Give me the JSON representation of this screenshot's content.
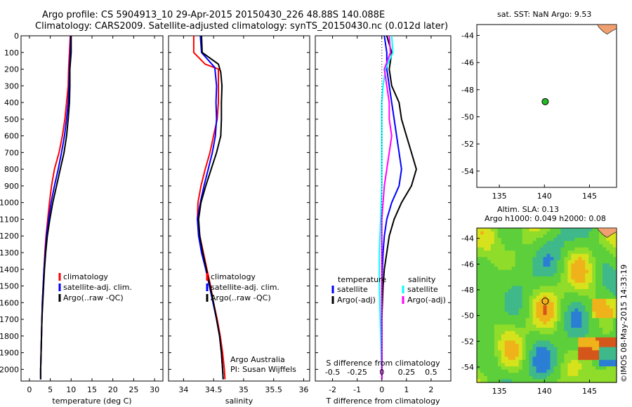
{
  "header": {
    "title_line1": "Argo profile: CS 5904913_10 29-Apr-2015 20150430_226 48.88S 140.088E",
    "title_line2": "Climatology: CARS2009. Satellite-adjusted climatology: synTS_20150430.nc (0.012d later)"
  },
  "map1": {
    "title": "sat. SST: NaN Argo: 9.53"
  },
  "map2": {
    "title_line1": "Altim. SLA: 0.13",
    "title_line2": "Argo h1000: 0.049 h2000: 0.08"
  },
  "footer_stamp": "©IMOS 08-May-2015 14:33:19",
  "annotations": {
    "agency": "Argo Australia",
    "pi": "PI: Susan Wijffels"
  },
  "colors": {
    "climatology": "#ff0000",
    "satellite": "#0000ff",
    "argo": "#000000",
    "sat_salinity": "#00ffff",
    "argo_salinity": "#ff00ff",
    "float_marker": "#22bb22"
  },
  "chart_data": [
    {
      "type": "line",
      "id": "temperature",
      "xlabel": "temperature (deg C)",
      "ylabel": "",
      "xlim": [
        -2,
        32
      ],
      "ylim": [
        2070,
        0
      ],
      "xticks": [
        0,
        5,
        10,
        15,
        20,
        25,
        30
      ],
      "yticks": [
        0,
        100,
        200,
        300,
        400,
        500,
        600,
        700,
        800,
        900,
        1000,
        1100,
        1200,
        1300,
        1400,
        1500,
        1600,
        1700,
        1800,
        1900,
        2000
      ],
      "legend": [
        "climatology",
        "satellite-adj. clim.",
        "Argo(..raw -QC)"
      ],
      "series": [
        {
          "name": "climatology",
          "color": "#ff0000",
          "points": [
            [
              9.8,
              0
            ],
            [
              9.6,
              100
            ],
            [
              9.4,
              200
            ],
            [
              9.3,
              300
            ],
            [
              8.9,
              400
            ],
            [
              8.5,
              500
            ],
            [
              7.9,
              600
            ],
            [
              7.1,
              700
            ],
            [
              6.0,
              800
            ],
            [
              5.3,
              900
            ],
            [
              4.8,
              1000
            ],
            [
              4.4,
              1100
            ],
            [
              4.0,
              1200
            ],
            [
              3.7,
              1300
            ],
            [
              3.5,
              1400
            ],
            [
              3.3,
              1500
            ],
            [
              3.1,
              1600
            ],
            [
              3.0,
              1700
            ],
            [
              2.9,
              1800
            ],
            [
              2.8,
              1900
            ],
            [
              2.7,
              2000
            ],
            [
              2.7,
              2060
            ]
          ]
        },
        {
          "name": "satellite-adj. clim.",
          "color": "#0000ff",
          "points": [
            [
              9.9,
              0
            ],
            [
              9.8,
              100
            ],
            [
              9.6,
              200
            ],
            [
              9.5,
              300
            ],
            [
              9.3,
              400
            ],
            [
              8.9,
              500
            ],
            [
              8.4,
              600
            ],
            [
              7.7,
              700
            ],
            [
              6.9,
              800
            ],
            [
              6.0,
              900
            ],
            [
              5.2,
              1000
            ],
            [
              4.6,
              1100
            ],
            [
              4.1,
              1200
            ],
            [
              3.8,
              1300
            ],
            [
              3.5,
              1400
            ],
            [
              3.3,
              1500
            ],
            [
              3.1,
              1600
            ],
            [
              3.0,
              1700
            ],
            [
              2.9,
              1800
            ],
            [
              2.8,
              1900
            ],
            [
              2.7,
              2000
            ],
            [
              2.7,
              2060
            ]
          ]
        },
        {
          "name": "Argo(..raw -QC)",
          "color": "#000000",
          "points": [
            [
              10.0,
              0
            ],
            [
              10.0,
              100
            ],
            [
              9.7,
              200
            ],
            [
              9.7,
              300
            ],
            [
              9.6,
              400
            ],
            [
              9.3,
              500
            ],
            [
              8.9,
              600
            ],
            [
              8.3,
              700
            ],
            [
              7.4,
              800
            ],
            [
              6.5,
              900
            ],
            [
              5.6,
              1000
            ],
            [
              4.9,
              1100
            ],
            [
              4.3,
              1200
            ],
            [
              3.9,
              1300
            ],
            [
              3.6,
              1400
            ],
            [
              3.4,
              1500
            ],
            [
              3.2,
              1600
            ],
            [
              3.0,
              1700
            ],
            [
              2.9,
              1800
            ],
            [
              2.8,
              1900
            ],
            [
              2.7,
              2000
            ],
            [
              2.7,
              2060
            ]
          ]
        }
      ]
    },
    {
      "type": "line",
      "id": "salinity",
      "xlabel": "salinity",
      "xlim": [
        33.75,
        36.1
      ],
      "ylim": [
        2070,
        0
      ],
      "xticks": [
        34,
        34.5,
        35,
        35.5,
        36
      ],
      "legend": [
        "climatology",
        "satellite-adj. clim.",
        "Argo(..raw -QC)"
      ],
      "series": [
        {
          "name": "climatology",
          "color": "#ff0000",
          "points": [
            [
              34.17,
              0
            ],
            [
              34.17,
              100
            ],
            [
              34.36,
              170
            ],
            [
              34.58,
              200
            ],
            [
              34.58,
              300
            ],
            [
              34.58,
              400
            ],
            [
              34.56,
              500
            ],
            [
              34.5,
              600
            ],
            [
              34.44,
              700
            ],
            [
              34.36,
              800
            ],
            [
              34.29,
              900
            ],
            [
              34.24,
              1000
            ],
            [
              34.23,
              1100
            ],
            [
              34.27,
              1200
            ],
            [
              34.33,
              1300
            ],
            [
              34.39,
              1400
            ],
            [
              34.45,
              1500
            ],
            [
              34.5,
              1600
            ],
            [
              34.56,
              1700
            ],
            [
              34.61,
              1800
            ],
            [
              34.65,
              1900
            ],
            [
              34.68,
              2000
            ],
            [
              34.69,
              2060
            ]
          ]
        },
        {
          "name": "satellite-adj. clim.",
          "color": "#0000ff",
          "points": [
            [
              34.28,
              0
            ],
            [
              34.3,
              100
            ],
            [
              34.52,
              190
            ],
            [
              34.55,
              300
            ],
            [
              34.54,
              400
            ],
            [
              34.55,
              500
            ],
            [
              34.53,
              600
            ],
            [
              34.48,
              700
            ],
            [
              34.41,
              800
            ],
            [
              34.34,
              900
            ],
            [
              34.28,
              1000
            ],
            [
              34.23,
              1100
            ],
            [
              34.25,
              1200
            ],
            [
              34.3,
              1300
            ],
            [
              34.37,
              1400
            ],
            [
              34.43,
              1500
            ],
            [
              34.49,
              1600
            ],
            [
              34.55,
              1700
            ],
            [
              34.6,
              1800
            ],
            [
              34.63,
              1900
            ],
            [
              34.65,
              2000
            ],
            [
              34.66,
              2060
            ]
          ]
        },
        {
          "name": "Argo(..raw -QC)",
          "color": "#000000",
          "points": [
            [
              34.3,
              0
            ],
            [
              34.31,
              100
            ],
            [
              34.58,
              170
            ],
            [
              34.62,
              220
            ],
            [
              34.64,
              300
            ],
            [
              34.63,
              400
            ],
            [
              34.63,
              500
            ],
            [
              34.62,
              600
            ],
            [
              34.55,
              700
            ],
            [
              34.46,
              800
            ],
            [
              34.37,
              900
            ],
            [
              34.29,
              1000
            ],
            [
              34.25,
              1100
            ],
            [
              34.27,
              1200
            ],
            [
              34.32,
              1300
            ],
            [
              34.38,
              1400
            ],
            [
              34.44,
              1500
            ],
            [
              34.5,
              1600
            ],
            [
              34.55,
              1700
            ],
            [
              34.6,
              1800
            ],
            [
              34.63,
              1900
            ],
            [
              34.65,
              2000
            ],
            [
              34.66,
              2060
            ]
          ]
        }
      ]
    },
    {
      "type": "line",
      "id": "difference",
      "xlabel": "T difference from climatology",
      "xlabel_top": "S difference from climatology",
      "xlim": [
        -2.7,
        2.8
      ],
      "ylim": [
        2070,
        0
      ],
      "xticks": [
        -2,
        -1,
        0,
        1,
        2
      ],
      "xticks_top": [
        -0.5,
        -0.25,
        0,
        0.25,
        0.5
      ],
      "legend_headers": [
        "temperature",
        "salinity"
      ],
      "legend": [
        "satellite",
        "Argo(-adj)",
        "satellite",
        "Argo(-adj)"
      ],
      "series": [
        {
          "name": "satellite",
          "group": "temperature",
          "color": "#0000ff",
          "points": [
            [
              0.1,
              0
            ],
            [
              0.2,
              100
            ],
            [
              0.2,
              200
            ],
            [
              0.3,
              300
            ],
            [
              0.4,
              400
            ],
            [
              0.5,
              500
            ],
            [
              0.6,
              600
            ],
            [
              0.7,
              700
            ],
            [
              0.8,
              800
            ],
            [
              0.7,
              900
            ],
            [
              0.4,
              1000
            ],
            [
              0.2,
              1100
            ],
            [
              0.1,
              1200
            ],
            [
              0.05,
              1300
            ],
            [
              0,
              1500
            ],
            [
              0,
              2060
            ]
          ]
        },
        {
          "name": "Argo(-adj)",
          "group": "temperature",
          "color": "#000000",
          "points": [
            [
              0.2,
              0
            ],
            [
              0.4,
              100
            ],
            [
              0.3,
              200
            ],
            [
              0.4,
              300
            ],
            [
              0.7,
              400
            ],
            [
              0.8,
              500
            ],
            [
              1.0,
              600
            ],
            [
              1.2,
              700
            ],
            [
              1.4,
              800
            ],
            [
              1.2,
              900
            ],
            [
              0.8,
              1000
            ],
            [
              0.5,
              1100
            ],
            [
              0.3,
              1200
            ],
            [
              0.2,
              1300
            ],
            [
              0.1,
              1400
            ],
            [
              0.05,
              1500
            ],
            [
              0,
              1700
            ],
            [
              0,
              2060
            ]
          ]
        },
        {
          "name": "satellite",
          "group": "salinity",
          "color": "#00ffff",
          "points": [
            [
              0.4,
              0
            ],
            [
              0.45,
              100
            ],
            [
              0.15,
              200
            ],
            [
              0.05,
              300
            ],
            [
              0,
              400
            ],
            [
              0,
              500
            ],
            [
              0,
              700
            ],
            [
              0,
              900
            ],
            [
              -0.05,
              1100
            ],
            [
              -0.1,
              1300
            ],
            [
              -0.1,
              1500
            ],
            [
              0,
              2060
            ]
          ]
        },
        {
          "name": "Argo(-adj)",
          "group": "salinity",
          "color": "#ff00ff",
          "points": [
            [
              0.3,
              0
            ],
            [
              0.35,
              100
            ],
            [
              0.1,
              200
            ],
            [
              0.2,
              300
            ],
            [
              0.3,
              400
            ],
            [
              0.3,
              500
            ],
            [
              0.4,
              600
            ],
            [
              0.3,
              700
            ],
            [
              0.2,
              800
            ],
            [
              0.1,
              900
            ],
            [
              0.05,
              1000
            ],
            [
              0,
              1100
            ],
            [
              0,
              1300
            ],
            [
              0,
              2060
            ]
          ]
        }
      ]
    },
    {
      "type": "scatter",
      "id": "map_sst",
      "xlim": [
        132.5,
        148
      ],
      "ylim": [
        -55.2,
        -43.2
      ],
      "xticks": [
        135,
        140,
        145
      ],
      "yticks": [
        -44,
        -46,
        -48,
        -50,
        -52,
        -54
      ],
      "points": [
        [
          140.088,
          -48.88
        ]
      ]
    },
    {
      "type": "heatmap",
      "id": "map_sla",
      "xlim": [
        132.5,
        148
      ],
      "ylim": [
        -55.2,
        -43.2
      ],
      "xticks": [
        135,
        140,
        145
      ],
      "yticks": [
        -44,
        -46,
        -48,
        -50,
        -52,
        -54
      ],
      "points": [
        [
          140.088,
          -48.88
        ]
      ]
    }
  ]
}
